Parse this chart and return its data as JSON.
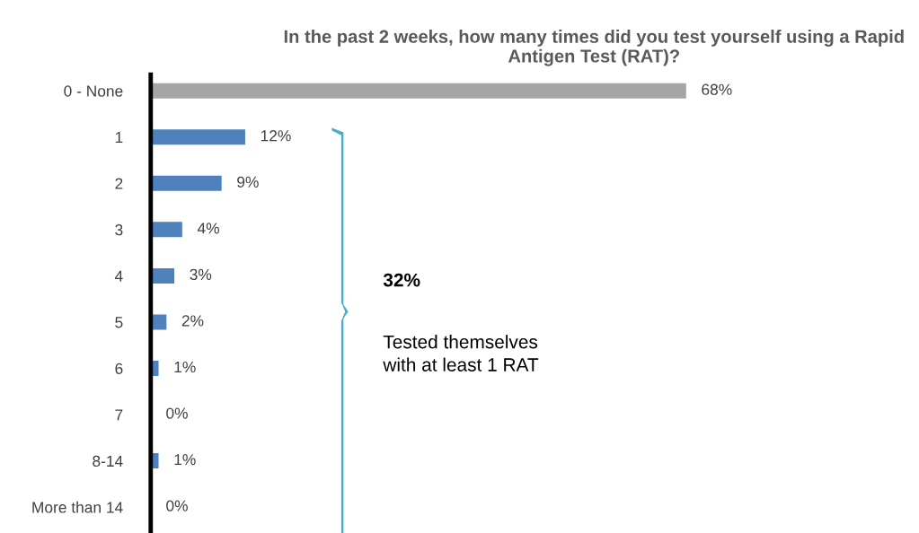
{
  "chart_data": {
    "type": "bar",
    "orientation": "horizontal",
    "title": "In the past 2 weeks, how many times did you test yourself using a Rapid Antigen Test (RAT)?",
    "categories": [
      "0 - None",
      "1",
      "2",
      "3",
      "4",
      "5",
      "6",
      "7",
      "8-14",
      "More than 14"
    ],
    "values": [
      68,
      12,
      9,
      4,
      3,
      2,
      1,
      0,
      1,
      0
    ],
    "colors": [
      "#a5a5a5",
      "#4f81bd",
      "#4f81bd",
      "#4f81bd",
      "#4f81bd",
      "#4f81bd",
      "#4f81bd",
      "#4f81bd",
      "#4f81bd",
      "#4f81bd"
    ],
    "value_labels": [
      "68%",
      "12%",
      "9%",
      "4%",
      "3%",
      "2%",
      "1%",
      "0%",
      "1%",
      "0%"
    ],
    "annotations": [
      "32%",
      "Tested themselves\nwith at least 1 RAT"
    ],
    "grid": false,
    "legend": false
  }
}
